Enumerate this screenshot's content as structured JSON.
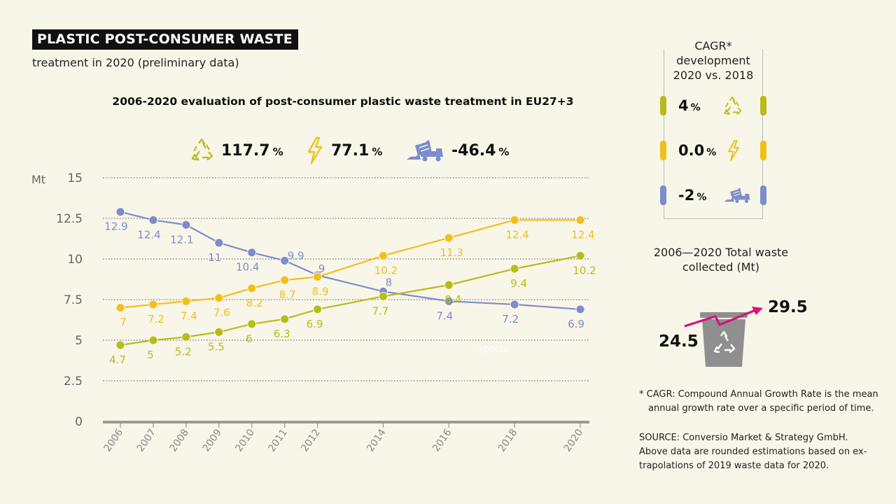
{
  "header": {
    "title": "PLASTIC POST-CONSUMER WASTE",
    "subtitle": "treatment in 2020 (preliminary data)"
  },
  "chart_title": "2006-2020 evaluation of post-consumer plastic waste treatment in EU27+3",
  "stats": [
    {
      "icon": "recycling-icon",
      "value": "117.7",
      "unit": "%"
    },
    {
      "icon": "energy-recovery-icon",
      "value": "77.1",
      "unit": "%"
    },
    {
      "icon": "landfill-truck-icon",
      "value": "-46.4",
      "unit": "%"
    }
  ],
  "colors": {
    "recycling": "#b7bc1a",
    "energy": "#f2be1a",
    "landfill": "#7c8ccc",
    "gridline": "#555555",
    "axis": "#999999"
  },
  "chart_data": {
    "type": "line",
    "ylabel": "Mt",
    "ylim": [
      0,
      15
    ],
    "yticks": [
      "0",
      "2.5",
      "5",
      "7.5",
      "10",
      "12.5",
      "15"
    ],
    "x": [
      "2006",
      "2007",
      "2008",
      "2009",
      "2010",
      "2011",
      "2012",
      "2014",
      "2016",
      "2018",
      "2020"
    ],
    "series": [
      {
        "key": "landfill",
        "values": [
          12.9,
          12.4,
          12.1,
          11,
          10.4,
          9.9,
          9,
          8,
          7.4,
          7.2,
          6.9
        ]
      },
      {
        "key": "energy",
        "values": [
          7,
          7.2,
          7.4,
          7.6,
          8.2,
          8.7,
          8.9,
          10.2,
          11.3,
          12.4,
          12.4
        ]
      },
      {
        "key": "recycling",
        "values": [
          4.7,
          5,
          5.2,
          5.5,
          6,
          6.3,
          6.9,
          7.7,
          8.4,
          9.4,
          10.2
        ]
      }
    ],
    "grid": true,
    "watermark": "exports"
  },
  "cagr": {
    "title": "CAGR* development 2020 vs. 2018",
    "rows": [
      {
        "value": "4",
        "unit": "%",
        "icon": "recycling-icon",
        "color": "#b7bc1a"
      },
      {
        "value": "0.0",
        "unit": "%",
        "icon": "energy-recovery-icon",
        "color": "#f2be1a"
      },
      {
        "value": "-2",
        "unit": "%",
        "icon": "landfill-truck-icon",
        "color": "#7c8ccc"
      }
    ]
  },
  "total": {
    "title": "2006—2020 Total waste collected (Mt)",
    "start": "24.5",
    "end": "29.5",
    "icon": "recycle-bin-icon",
    "arrow_color": "#d6117a"
  },
  "notes": {
    "cagr_line1": "* CAGR: Compound Annual Growth Rate is the mean",
    "cagr_line2": "annual growth rate over a specific period of time.",
    "source_line1": "SOURCE: Conversio Market & Strategy GmbH.",
    "source_line2": "Above data are rounded estimations based on ex-",
    "source_line3": "trapolations of 2019 waste data for 2020."
  }
}
